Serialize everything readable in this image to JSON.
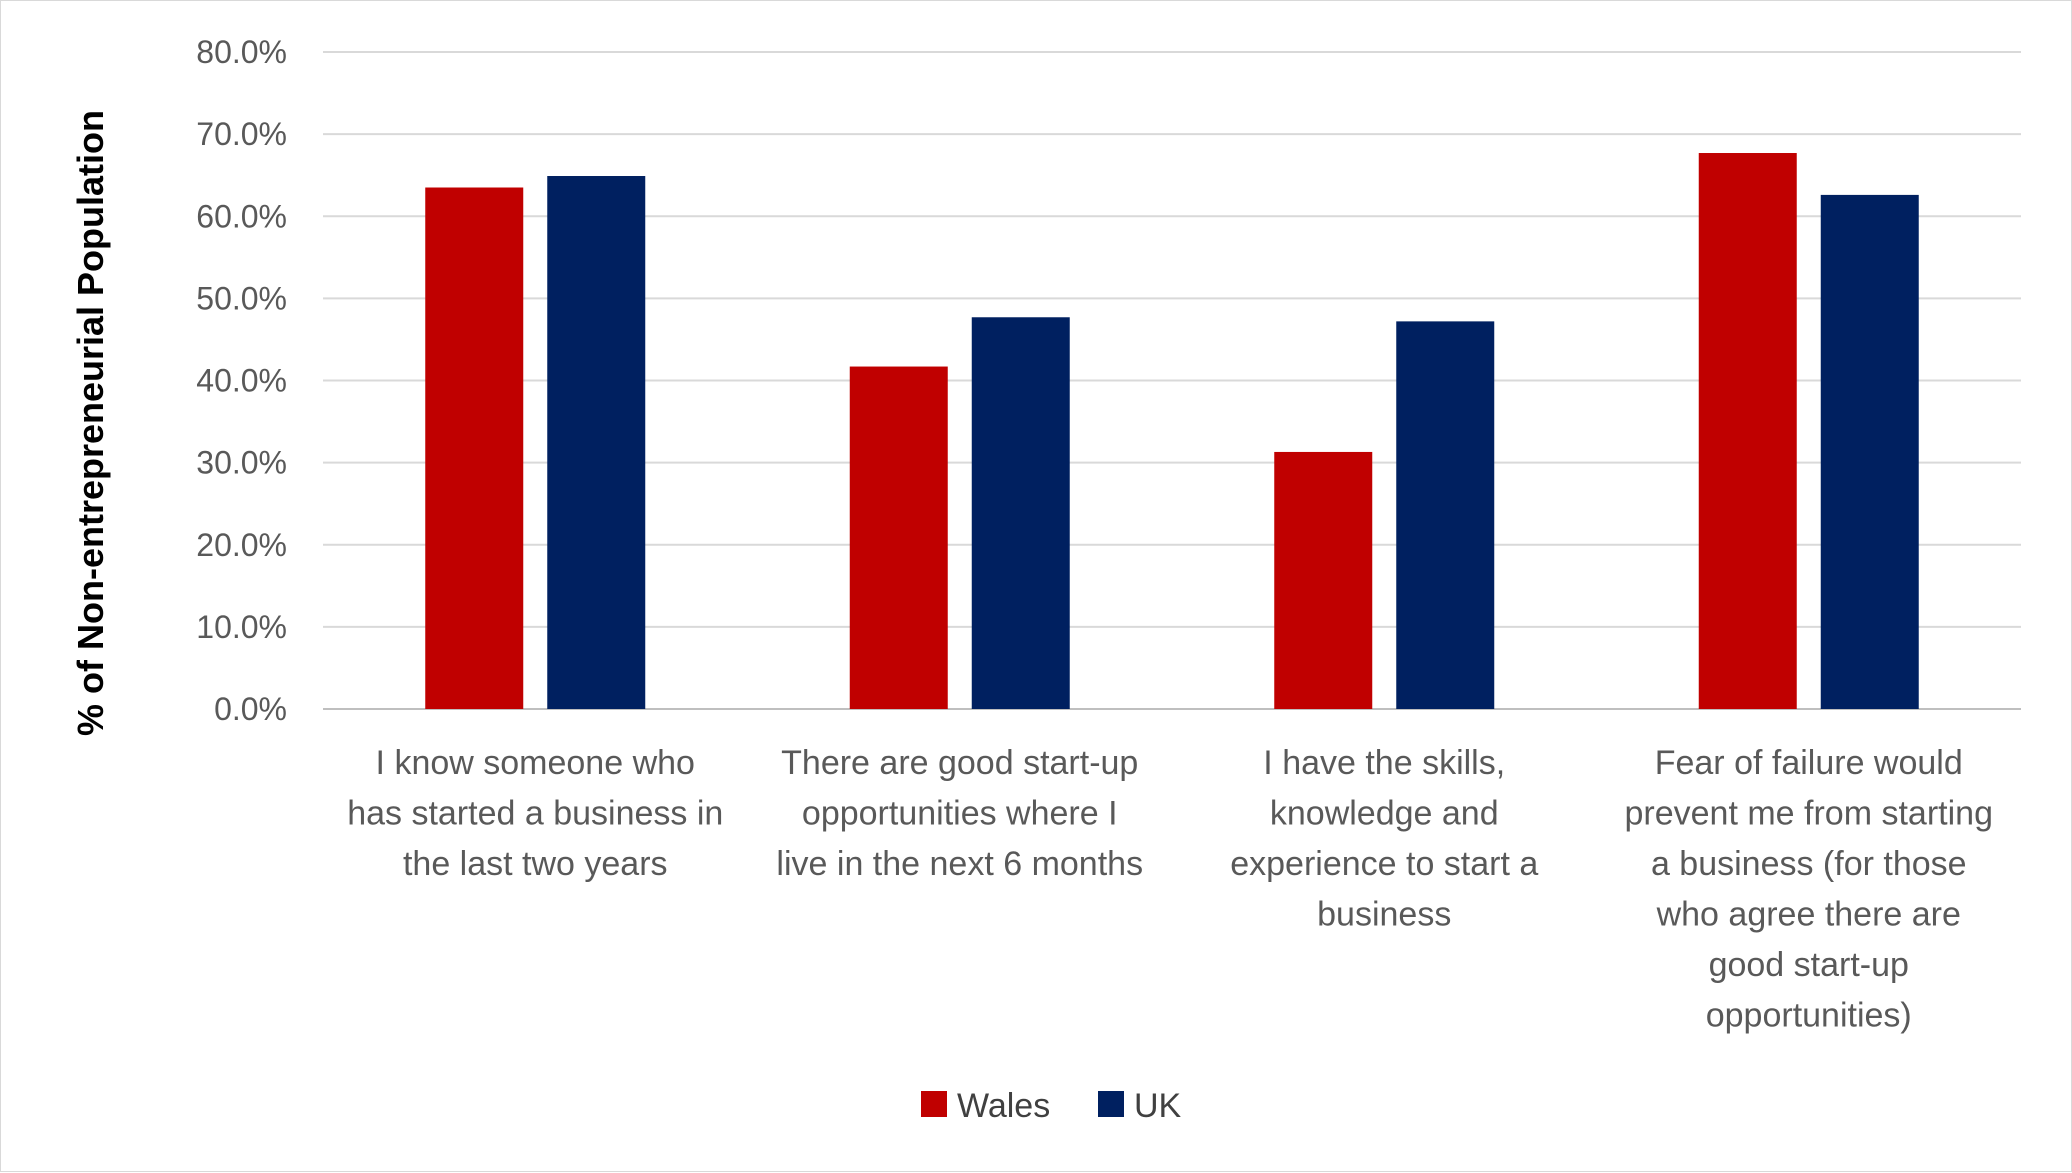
{
  "chart_data": {
    "type": "bar",
    "title": "",
    "xlabel": "",
    "ylabel": "% of Non-entrepreneurial Population",
    "ylim": [
      0,
      80
    ],
    "yticks": [
      0,
      10,
      20,
      30,
      40,
      50,
      60,
      70,
      80
    ],
    "ytick_labels": [
      "0.0%",
      "10.0%",
      "20.0%",
      "30.0%",
      "40.0%",
      "50.0%",
      "60.0%",
      "70.0%",
      "80.0%"
    ],
    "grid": true,
    "legend_position": "bottom",
    "categories": [
      [
        "I know someone who",
        "has started a business in",
        "the last two years"
      ],
      [
        "There are good start-up",
        "opportunities where I",
        "live in the next 6 months"
      ],
      [
        "I have the skills,",
        "knowledge and",
        "experience to start a",
        "business"
      ],
      [
        "Fear of failure would",
        "prevent me from starting",
        "a business (for those",
        "who agree there are",
        "good start-up",
        "opportunities)"
      ]
    ],
    "series": [
      {
        "name": "Wales",
        "color": "#c00000",
        "values": [
          63.5,
          41.7,
          31.3,
          67.7
        ]
      },
      {
        "name": "UK",
        "color": "#002060",
        "values": [
          64.9,
          47.7,
          47.2,
          62.6
        ]
      }
    ]
  }
}
